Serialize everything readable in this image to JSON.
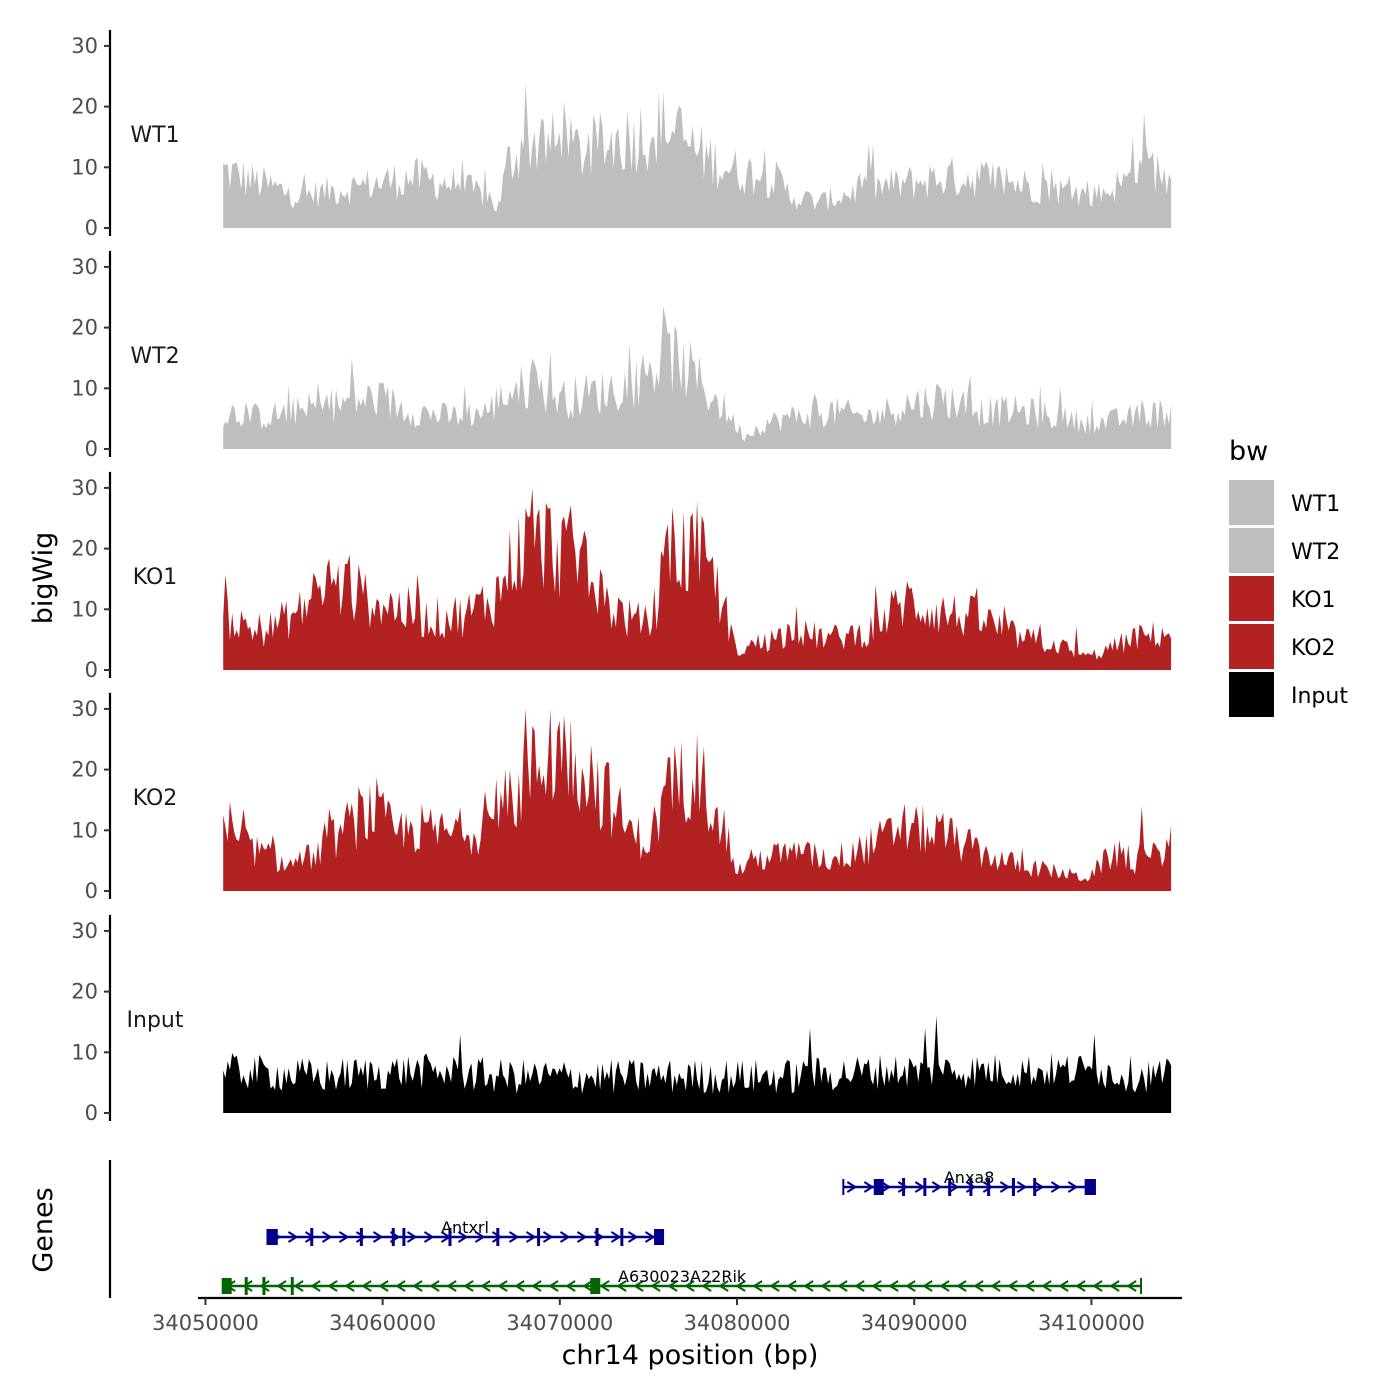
{
  "chart_data": {
    "type": "area",
    "title": "",
    "ylabel": "bigWig",
    "xlabel": "chr14 position (bp)",
    "ylim": [
      0,
      30
    ],
    "yticks": [
      0,
      10,
      20,
      30
    ],
    "xlim": [
      34048000,
      34105000
    ],
    "xticks": [
      34050000,
      34060000,
      34070000,
      34080000,
      34090000,
      34100000
    ],
    "xtick_labels": [
      "34050000",
      "34060000",
      "34070000",
      "34080000",
      "34090000",
      "34100000"
    ],
    "x_range": [
      34051000,
      34104500
    ],
    "legend": {
      "title": "bw",
      "position": "right",
      "entries": [
        {
          "name": "WT1",
          "color": "#bebebe"
        },
        {
          "name": "WT2",
          "color": "#bebebe"
        },
        {
          "name": "KO1",
          "color": "#b22222"
        },
        {
          "name": "KO2",
          "color": "#b22222"
        },
        {
          "name": "Input",
          "color": "#000000"
        }
      ]
    },
    "series": [
      {
        "name": "WT1",
        "color": "#bebebe",
        "anchors": [
          [
            0,
            9
          ],
          [
            0.04,
            7
          ],
          [
            0.08,
            5
          ],
          [
            0.12,
            6
          ],
          [
            0.16,
            7
          ],
          [
            0.2,
            8
          ],
          [
            0.24,
            7
          ],
          [
            0.28,
            5
          ],
          [
            0.29,
            3
          ],
          [
            0.3,
            10
          ],
          [
            0.32,
            14
          ],
          [
            0.35,
            13
          ],
          [
            0.38,
            12
          ],
          [
            0.4,
            13
          ],
          [
            0.44,
            15
          ],
          [
            0.47,
            16
          ],
          [
            0.5,
            12
          ],
          [
            0.54,
            9
          ],
          [
            0.58,
            8
          ],
          [
            0.6,
            5
          ],
          [
            0.63,
            4
          ],
          [
            0.67,
            6
          ],
          [
            0.72,
            7
          ],
          [
            0.76,
            8
          ],
          [
            0.8,
            8
          ],
          [
            0.84,
            7
          ],
          [
            0.88,
            6
          ],
          [
            0.92,
            5
          ],
          [
            0.96,
            8
          ],
          [
            0.98,
            10
          ],
          [
            1,
            7
          ]
        ],
        "spikes": [
          [
            0.318,
            24
          ],
          [
            0.36,
            21
          ],
          [
            0.68,
            14
          ],
          [
            0.972,
            19
          ],
          [
            0.96,
            15
          ]
        ]
      },
      {
        "name": "WT2",
        "color": "#bebebe",
        "anchors": [
          [
            0,
            6
          ],
          [
            0.04,
            5
          ],
          [
            0.08,
            6
          ],
          [
            0.12,
            7
          ],
          [
            0.16,
            8
          ],
          [
            0.2,
            6
          ],
          [
            0.24,
            5
          ],
          [
            0.28,
            6
          ],
          [
            0.3,
            9
          ],
          [
            0.33,
            10
          ],
          [
            0.36,
            8
          ],
          [
            0.4,
            9
          ],
          [
            0.44,
            11
          ],
          [
            0.47,
            15
          ],
          [
            0.5,
            11
          ],
          [
            0.53,
            6
          ],
          [
            0.55,
            2
          ],
          [
            0.57,
            4
          ],
          [
            0.6,
            5
          ],
          [
            0.64,
            6
          ],
          [
            0.68,
            5
          ],
          [
            0.72,
            7
          ],
          [
            0.76,
            8
          ],
          [
            0.8,
            6
          ],
          [
            0.84,
            6
          ],
          [
            0.88,
            5
          ],
          [
            0.92,
            4
          ],
          [
            0.96,
            5
          ],
          [
            1,
            6
          ]
        ],
        "spikes": [
          [
            0.47,
            19
          ],
          [
            0.345,
            16
          ],
          [
            0.135,
            15
          ]
        ]
      },
      {
        "name": "KO1",
        "color": "#b22222",
        "anchors": [
          [
            0,
            8
          ],
          [
            0.04,
            6
          ],
          [
            0.08,
            9
          ],
          [
            0.11,
            14
          ],
          [
            0.14,
            12
          ],
          [
            0.18,
            10
          ],
          [
            0.22,
            8
          ],
          [
            0.26,
            9
          ],
          [
            0.29,
            12
          ],
          [
            0.31,
            19
          ],
          [
            0.34,
            20
          ],
          [
            0.37,
            18
          ],
          [
            0.4,
            11
          ],
          [
            0.43,
            8
          ],
          [
            0.45,
            7
          ],
          [
            0.47,
            18
          ],
          [
            0.5,
            19
          ],
          [
            0.53,
            10
          ],
          [
            0.54,
            3
          ],
          [
            0.56,
            4
          ],
          [
            0.6,
            6
          ],
          [
            0.64,
            5
          ],
          [
            0.68,
            6
          ],
          [
            0.72,
            11
          ],
          [
            0.76,
            9
          ],
          [
            0.8,
            8
          ],
          [
            0.84,
            5
          ],
          [
            0.88,
            4
          ],
          [
            0.91,
            2
          ],
          [
            0.93,
            3
          ],
          [
            0.96,
            5
          ],
          [
            1,
            6
          ]
        ],
        "spikes": [
          [
            0.325,
            30
          ],
          [
            0.5,
            28
          ],
          [
            0.47,
            24
          ],
          [
            0.38,
            23
          ]
        ]
      },
      {
        "name": "KO2",
        "color": "#b22222",
        "anchors": [
          [
            0,
            9
          ],
          [
            0.04,
            6
          ],
          [
            0.07,
            4
          ],
          [
            0.1,
            6
          ],
          [
            0.13,
            10
          ],
          [
            0.16,
            13
          ],
          [
            0.18,
            9
          ],
          [
            0.2,
            10
          ],
          [
            0.24,
            9
          ],
          [
            0.27,
            10
          ],
          [
            0.3,
            13
          ],
          [
            0.32,
            18
          ],
          [
            0.35,
            22
          ],
          [
            0.38,
            20
          ],
          [
            0.41,
            14
          ],
          [
            0.43,
            9
          ],
          [
            0.45,
            8
          ],
          [
            0.47,
            16
          ],
          [
            0.5,
            19
          ],
          [
            0.53,
            10
          ],
          [
            0.54,
            3
          ],
          [
            0.56,
            5
          ],
          [
            0.6,
            6
          ],
          [
            0.64,
            5
          ],
          [
            0.68,
            7
          ],
          [
            0.72,
            10
          ],
          [
            0.76,
            9
          ],
          [
            0.8,
            6
          ],
          [
            0.84,
            4
          ],
          [
            0.88,
            3
          ],
          [
            0.91,
            2
          ],
          [
            0.94,
            6
          ],
          [
            0.97,
            4
          ],
          [
            1,
            8
          ]
        ],
        "spikes": [
          [
            0.318,
            30
          ],
          [
            0.345,
            30
          ],
          [
            0.36,
            29
          ],
          [
            0.5,
            26
          ],
          [
            0.47,
            22
          ],
          [
            0.97,
            14
          ]
        ]
      },
      {
        "name": "Input",
        "color": "#000000",
        "anchors": [
          [
            0,
            7
          ],
          [
            0.1,
            6
          ],
          [
            0.2,
            7
          ],
          [
            0.3,
            6
          ],
          [
            0.4,
            6
          ],
          [
            0.5,
            6
          ],
          [
            0.6,
            6
          ],
          [
            0.7,
            7
          ],
          [
            0.8,
            7
          ],
          [
            0.9,
            7
          ],
          [
            1,
            6
          ]
        ],
        "spikes": [
          [
            0.753,
            16
          ],
          [
            0.74,
            14
          ],
          [
            0.92,
            13
          ],
          [
            0.25,
            13
          ],
          [
            0.62,
            14
          ]
        ]
      }
    ],
    "genes_label": "Genes",
    "genes": [
      {
        "name": "Anxa8",
        "start": 34086000,
        "end": 34100200,
        "strand": "+",
        "color": "#00008b",
        "row": 0,
        "exons": [
          34088000,
          34089400,
          34090600,
          34092000,
          34093200,
          34094200,
          34095600,
          34096800,
          34099900
        ]
      },
      {
        "name": "Antxrl",
        "start": 34053500,
        "end": 34075800,
        "strand": "+",
        "color": "#00008b",
        "row": 1,
        "exons": [
          34053800,
          34056000,
          34058800,
          34060600,
          34061200,
          34063800,
          34066500,
          34068800,
          34072100,
          34073500,
          34075600
        ]
      },
      {
        "name": "A630023A22Rik",
        "start": 34051000,
        "end": 34102800,
        "strand": "-",
        "color": "#006400",
        "row": 2,
        "exons": [
          34051200,
          34052300,
          34053300,
          34054900,
          34072000
        ]
      }
    ]
  }
}
